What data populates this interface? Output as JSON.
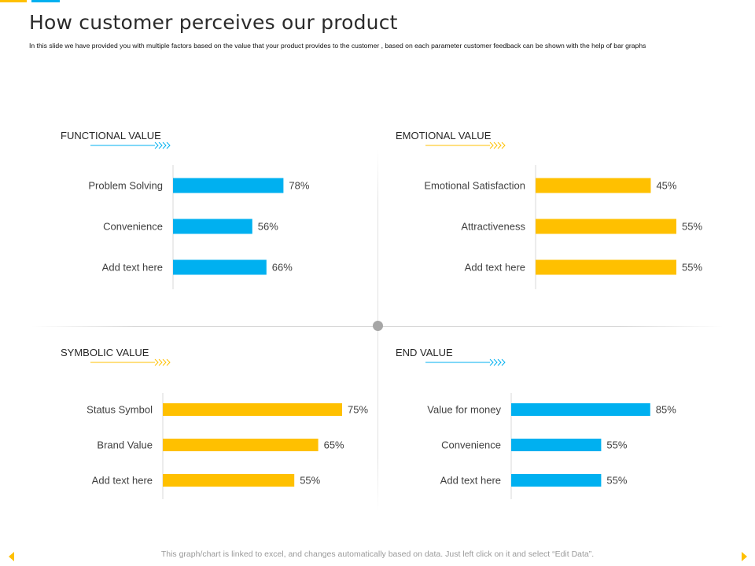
{
  "header": {
    "title": "How customer perceives our product",
    "subtitle": "In this slide we have provided you with multiple factors based on the value that your product provides to the customer , based on each parameter customer feedback can be shown with the help of bar graphs"
  },
  "footer": {
    "note": "This graph/chart is linked to excel, and changes automatically based on data. Just left click on it and select “Edit Data”."
  },
  "colors": {
    "blue": "#00B0F0",
    "yellow": "#FFC000",
    "text": "#404040",
    "axis": "#d9d9d9"
  },
  "chart_data": [
    {
      "type": "bar",
      "orientation": "horizontal",
      "title": "FUNCTIONAL VALUE",
      "color": "#00B0F0",
      "categories": [
        "Problem Solving",
        "Convenience",
        "Add text here"
      ],
      "values": [
        78,
        56,
        66
      ],
      "labels": [
        "78%",
        "56%",
        "66%"
      ],
      "xlim": [
        0,
        100
      ]
    },
    {
      "type": "bar",
      "orientation": "horizontal",
      "title": "EMOTIONAL VALUE",
      "color": "#FFC000",
      "categories": [
        "Emotional Satisfaction",
        "Attractiveness",
        "Add text here"
      ],
      "values": [
        45,
        55,
        55
      ],
      "labels": [
        "45%",
        "55%",
        "55%"
      ],
      "xlim": [
        0,
        55
      ]
    },
    {
      "type": "bar",
      "orientation": "horizontal",
      "title": "SYMBOLIC VALUE",
      "color": "#FFC000",
      "categories": [
        "Status Symbol",
        "Brand Value",
        "Add text here"
      ],
      "values": [
        75,
        65,
        55
      ],
      "labels": [
        "75%",
        "65%",
        "55%"
      ],
      "xlim": [
        0,
        75
      ]
    },
    {
      "type": "bar",
      "orientation": "horizontal",
      "title": "END VALUE",
      "color": "#00B0F0",
      "categories": [
        "Value for money",
        "Convenience",
        "Add text here"
      ],
      "values": [
        85,
        55,
        55
      ],
      "labels": [
        "85%",
        "55%",
        "55%"
      ],
      "xlim": [
        0,
        100
      ]
    }
  ]
}
